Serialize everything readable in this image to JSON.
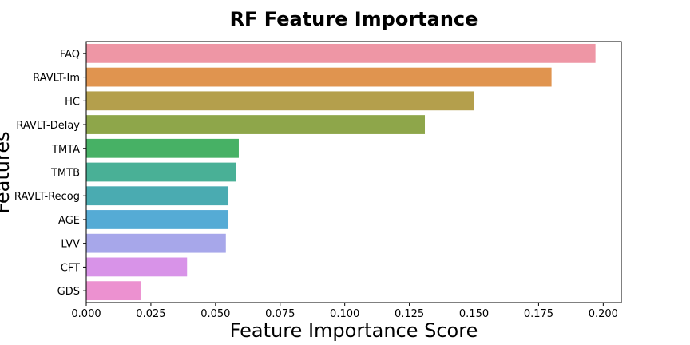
{
  "chart_data": {
    "type": "bar",
    "orientation": "horizontal",
    "title": "RF Feature Importance",
    "xlabel": "Feature Importance Score",
    "ylabel": "Features",
    "categories": [
      "FAQ",
      "RAVLT-Im",
      "HC",
      "RAVLT-Delay",
      "TMTA",
      "TMTB",
      "RAVLT-Recog",
      "AGE",
      "LVV",
      "CFT",
      "GDS"
    ],
    "values": [
      0.197,
      0.18,
      0.15,
      0.131,
      0.059,
      0.058,
      0.055,
      0.055,
      0.054,
      0.039,
      0.021
    ],
    "colors": [
      "#ee96a5",
      "#e0944f",
      "#b49f4c",
      "#8ea64a",
      "#47b165",
      "#49b096",
      "#4aabb1",
      "#55abd5",
      "#a7a7ea",
      "#d893e8",
      "#ec91d0"
    ],
    "xlim": [
      0,
      0.207
    ],
    "xticks": [
      "0.000",
      "0.025",
      "0.050",
      "0.075",
      "0.100",
      "0.125",
      "0.150",
      "0.175",
      "0.200"
    ],
    "xtick_values": [
      0,
      0.025,
      0.05,
      0.075,
      0.1,
      0.125,
      0.15,
      0.175,
      0.2
    ],
    "grid": false,
    "legend": "none"
  }
}
